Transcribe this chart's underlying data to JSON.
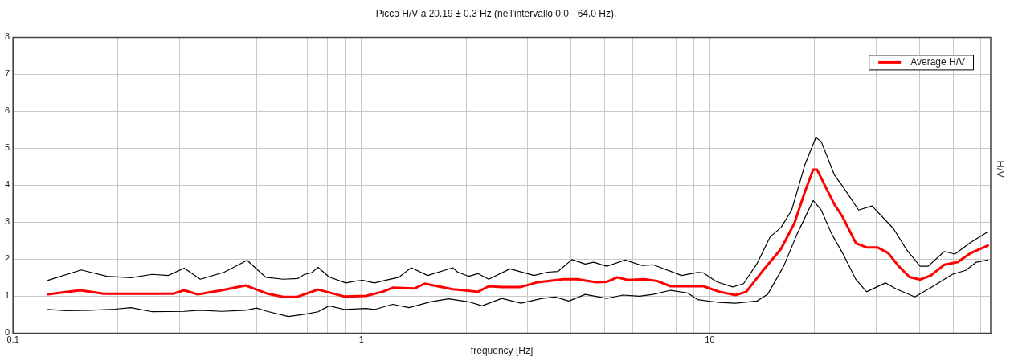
{
  "chart_data": {
    "type": "line",
    "title": "Picco H/V a 20.19 ± 0.3 Hz (nell'intervallo 0.0 - 64.0 Hz).",
    "xlabel": "frequency [Hz]",
    "ylabel": "H/V",
    "log": "x",
    "xlim": [
      0.1,
      64
    ],
    "ylim": [
      0,
      8
    ],
    "xticks": [
      0.1,
      {
        "value": 0.2,
        "label": null
      },
      {
        "value": 0.3,
        "label": null
      },
      {
        "value": 0.4,
        "label": null
      },
      {
        "value": 0.5,
        "label": null
      },
      {
        "value": 0.6,
        "label": null
      },
      {
        "value": 0.7,
        "label": null
      },
      {
        "value": 0.8,
        "label": null
      },
      {
        "value": 0.9,
        "label": null
      },
      1,
      {
        "value": 2,
        "label": null
      },
      {
        "value": 3,
        "label": null
      },
      {
        "value": 4,
        "label": null
      },
      {
        "value": 5,
        "label": null
      },
      {
        "value": 6,
        "label": null
      },
      {
        "value": 7,
        "label": null
      },
      {
        "value": 8,
        "label": null
      },
      {
        "value": 9,
        "label": null
      },
      10,
      {
        "value": 20,
        "label": null
      },
      {
        "value": 30,
        "label": null
      },
      {
        "value": 40,
        "label": null
      },
      {
        "value": 50,
        "label": null
      },
      {
        "value": 60,
        "label": null
      }
    ],
    "yticks": [
      0,
      1,
      2,
      3,
      4,
      5,
      6,
      7,
      8
    ],
    "grid": true,
    "legend": "top right",
    "marker": "none",
    "line_style": "solid",
    "series": [
      {
        "color": "#000000",
        "x": [
          0.126,
          0.157,
          0.186,
          0.218,
          0.251,
          0.279,
          0.31,
          0.345,
          0.404,
          0.47,
          0.532,
          0.597,
          0.657,
          0.687,
          0.718,
          0.751,
          0.808,
          0.903,
          0.959,
          1.01,
          1.09,
          1.17,
          1.28,
          1.39,
          1.55,
          1.83,
          1.89,
          2.03,
          2.16,
          2.32,
          2.67,
          3.13,
          3.42,
          3.67,
          4.02,
          4.39,
          4.64,
          5.06,
          5.71,
          6.39,
          6.87,
          8.3,
          9.22,
          9.59,
          10.47,
          11.64,
          12.5,
          13.66,
          14.91,
          16.01,
          17.18,
          18.77,
          20.15,
          20.88,
          22.8,
          24.03,
          26.73,
          29.2,
          33.65,
          36.75,
          40.15,
          42.33,
          47.08,
          50.52,
          56.17,
          62.8
        ],
        "values": [
          1.43,
          1.71,
          1.54,
          1.5,
          1.59,
          1.56,
          1.76,
          1.46,
          1.65,
          1.97,
          1.51,
          1.46,
          1.48,
          1.59,
          1.63,
          1.78,
          1.52,
          1.36,
          1.41,
          1.43,
          1.36,
          1.43,
          1.51,
          1.77,
          1.56,
          1.77,
          1.65,
          1.54,
          1.61,
          1.46,
          1.74,
          1.56,
          1.65,
          1.67,
          1.99,
          1.87,
          1.92,
          1.81,
          1.98,
          1.83,
          1.85,
          1.56,
          1.64,
          1.63,
          1.39,
          1.25,
          1.34,
          1.88,
          2.61,
          2.86,
          3.33,
          4.57,
          5.29,
          5.18,
          4.27,
          3.98,
          3.33,
          3.44,
          2.83,
          2.25,
          1.81,
          1.81,
          2.21,
          2.14,
          2.46,
          2.74
        ]
      },
      {
        "color": "#000000",
        "x": [
          0.126,
          0.142,
          0.167,
          0.196,
          0.218,
          0.251,
          0.31,
          0.345,
          0.397,
          0.466,
          0.5,
          0.537,
          0.617,
          0.687,
          0.751,
          0.808,
          0.896,
          1.03,
          1.09,
          1.23,
          1.37,
          1.58,
          1.78,
          2.03,
          2.22,
          2.53,
          2.87,
          3.3,
          3.6,
          3.94,
          4.39,
          5.06,
          5.63,
          6.28,
          6.87,
          7.72,
          8.62,
          9.22,
          10.66,
          11.85,
          13.66,
          14.65,
          16.29,
          17.8,
          19.8,
          20.88,
          22.39,
          24.03,
          26.27,
          28.18,
          31.9,
          34.24,
          38.75,
          43.08,
          49.64,
          54.24,
          58.21,
          62.8
        ],
        "values": [
          0.64,
          0.61,
          0.62,
          0.65,
          0.69,
          0.58,
          0.59,
          0.62,
          0.59,
          0.62,
          0.68,
          0.59,
          0.45,
          0.51,
          0.58,
          0.74,
          0.64,
          0.67,
          0.64,
          0.78,
          0.69,
          0.85,
          0.93,
          0.85,
          0.74,
          0.94,
          0.81,
          0.94,
          0.98,
          0.87,
          1.05,
          0.94,
          1.03,
          1.0,
          1.05,
          1.16,
          1.09,
          0.91,
          0.83,
          0.81,
          0.87,
          1.05,
          1.81,
          2.68,
          3.59,
          3.33,
          2.68,
          2.17,
          1.45,
          1.12,
          1.36,
          1.2,
          0.98,
          1.23,
          1.59,
          1.7,
          1.92,
          1.98
        ]
      },
      {
        "name": "Average H/V",
        "color": "#ff0000",
        "x": [
          0.126,
          0.156,
          0.182,
          0.218,
          0.289,
          0.31,
          0.339,
          0.397,
          0.466,
          0.537,
          0.597,
          0.652,
          0.751,
          0.896,
          1.03,
          1.15,
          1.23,
          1.42,
          1.52,
          1.83,
          1.92,
          2.16,
          2.32,
          2.53,
          2.87,
          3.21,
          3.81,
          4.16,
          4.72,
          5.06,
          5.43,
          5.82,
          6.47,
          7.07,
          7.72,
          8.9,
          9.59,
          10.66,
          11.85,
          12.72,
          14.14,
          16.01,
          17.48,
          18.77,
          19.8,
          20.32,
          21.61,
          22.8,
          24.03,
          26.27,
          28.18,
          30.26,
          32.48,
          34.85,
          37.41,
          40.15,
          43.08,
          47.08,
          51.44,
          56.17,
          62.8
        ],
        "values": [
          1.05,
          1.16,
          1.07,
          1.07,
          1.07,
          1.16,
          1.05,
          1.16,
          1.29,
          1.07,
          0.98,
          0.98,
          1.18,
          0.99,
          1.01,
          1.12,
          1.23,
          1.21,
          1.34,
          1.19,
          1.17,
          1.12,
          1.27,
          1.25,
          1.25,
          1.38,
          1.46,
          1.46,
          1.38,
          1.39,
          1.51,
          1.44,
          1.46,
          1.41,
          1.27,
          1.27,
          1.27,
          1.12,
          1.03,
          1.12,
          1.67,
          2.28,
          2.97,
          3.84,
          4.42,
          4.42,
          3.91,
          3.48,
          3.15,
          2.43,
          2.32,
          2.32,
          2.17,
          1.81,
          1.52,
          1.45,
          1.56,
          1.85,
          1.92,
          2.17,
          2.37
        ]
      }
    ]
  }
}
